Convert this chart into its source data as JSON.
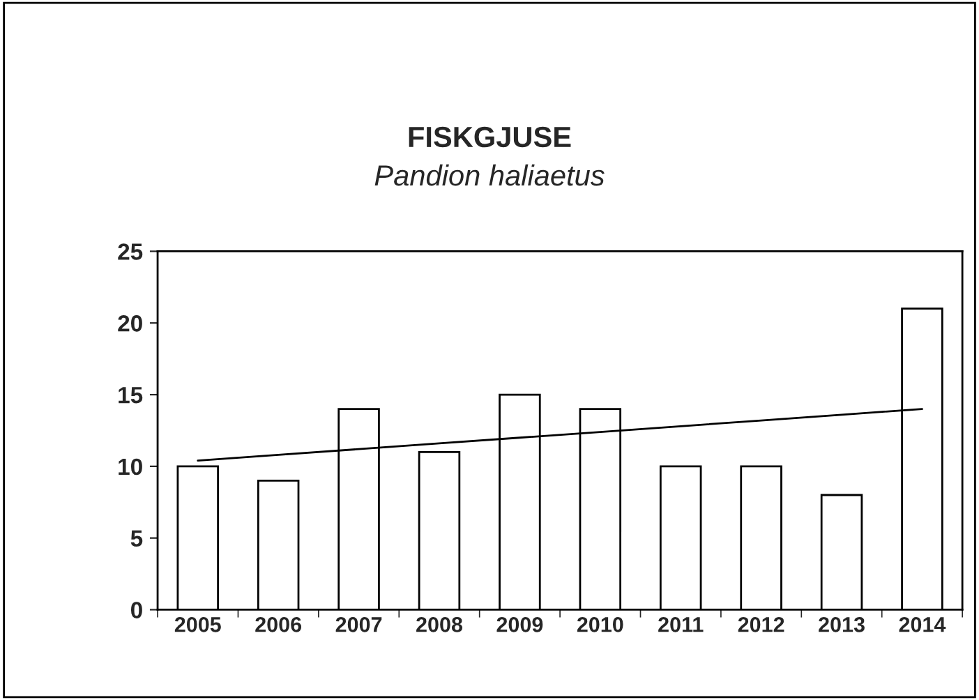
{
  "chart_data": {
    "type": "bar",
    "title": "FISKGJUSE",
    "subtitle": "Pandion haliaetus",
    "categories": [
      "2005",
      "2006",
      "2007",
      "2008",
      "2009",
      "2010",
      "2011",
      "2012",
      "2013",
      "2014"
    ],
    "series": [
      {
        "color": "#ffffff",
        "values": [
          10,
          9,
          14,
          11,
          15,
          14,
          10,
          10,
          8,
          21
        ]
      },
      {
        "type": "line",
        "color": "#000000",
        "values": [
          10.4,
          10.8,
          11.2,
          11.6,
          12.0,
          12.4,
          12.8,
          13.2,
          13.6,
          14.0
        ]
      }
    ],
    "ylim": [
      0,
      25
    ],
    "yticks": [
      0,
      5,
      10,
      15,
      20,
      25
    ],
    "grid": false,
    "legend": false
  }
}
